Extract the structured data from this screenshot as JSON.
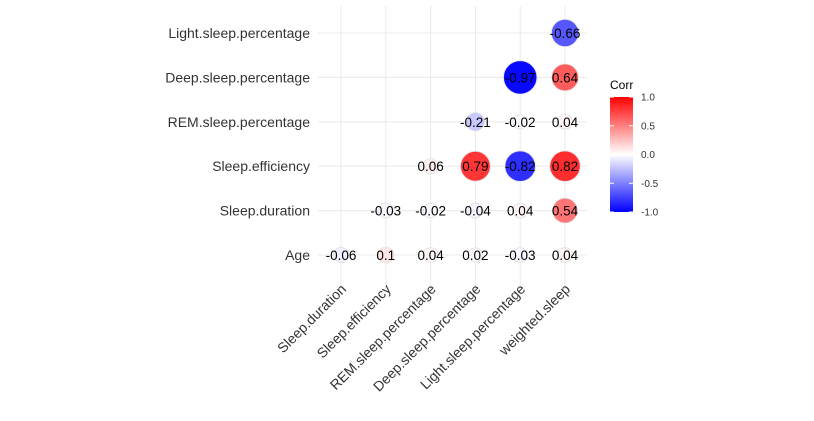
{
  "chart_data": {
    "type": "heatmap",
    "style": "correlation-circles",
    "x_categories": [
      "Sleep.duration",
      "Sleep.efficiency",
      "REM.sleep.percentage",
      "Deep.sleep.percentage",
      "Light.sleep.percentage",
      "weighted.sleep"
    ],
    "y_categories": [
      "Age",
      "Sleep.duration",
      "Sleep.efficiency",
      "REM.sleep.percentage",
      "Deep.sleep.percentage",
      "Light.sleep.percentage"
    ],
    "cells": [
      {
        "x": "Sleep.duration",
        "y": "Age",
        "value": -0.06,
        "label": "-0.06"
      },
      {
        "x": "Sleep.efficiency",
        "y": "Age",
        "value": 0.1,
        "label": "0.1"
      },
      {
        "x": "REM.sleep.percentage",
        "y": "Age",
        "value": 0.04,
        "label": "0.04"
      },
      {
        "x": "Deep.sleep.percentage",
        "y": "Age",
        "value": 0.02,
        "label": "0.02"
      },
      {
        "x": "Light.sleep.percentage",
        "y": "Age",
        "value": -0.03,
        "label": "-0.03"
      },
      {
        "x": "weighted.sleep",
        "y": "Age",
        "value": 0.04,
        "label": "0.04"
      },
      {
        "x": "Sleep.efficiency",
        "y": "Sleep.duration",
        "value": -0.03,
        "label": "-0.03"
      },
      {
        "x": "REM.sleep.percentage",
        "y": "Sleep.duration",
        "value": -0.02,
        "label": "-0.02"
      },
      {
        "x": "Deep.sleep.percentage",
        "y": "Sleep.duration",
        "value": -0.04,
        "label": "-0.04"
      },
      {
        "x": "Light.sleep.percentage",
        "y": "Sleep.duration",
        "value": 0.04,
        "label": "0.04"
      },
      {
        "x": "weighted.sleep",
        "y": "Sleep.duration",
        "value": 0.54,
        "label": "0.54"
      },
      {
        "x": "REM.sleep.percentage",
        "y": "Sleep.efficiency",
        "value": 0.06,
        "label": "0.06"
      },
      {
        "x": "Deep.sleep.percentage",
        "y": "Sleep.efficiency",
        "value": 0.79,
        "label": "0.79"
      },
      {
        "x": "Light.sleep.percentage",
        "y": "Sleep.efficiency",
        "value": -0.82,
        "label": "-0.82"
      },
      {
        "x": "weighted.sleep",
        "y": "Sleep.efficiency",
        "value": 0.82,
        "label": "0.82"
      },
      {
        "x": "Deep.sleep.percentage",
        "y": "REM.sleep.percentage",
        "value": -0.21,
        "label": "-0.21"
      },
      {
        "x": "Light.sleep.percentage",
        "y": "REM.sleep.percentage",
        "value": -0.02,
        "label": "-0.02"
      },
      {
        "x": "weighted.sleep",
        "y": "REM.sleep.percentage",
        "value": 0.04,
        "label": "0.04"
      },
      {
        "x": "Light.sleep.percentage",
        "y": "Deep.sleep.percentage",
        "value": -0.97,
        "label": "-0.97"
      },
      {
        "x": "weighted.sleep",
        "y": "Deep.sleep.percentage",
        "value": 0.64,
        "label": "0.64"
      },
      {
        "x": "weighted.sleep",
        "y": "Light.sleep.percentage",
        "value": -0.66,
        "label": "-0.66"
      }
    ],
    "legend": {
      "title": "Corr",
      "ticks": [
        {
          "value": 1.0,
          "label": "1.0"
        },
        {
          "value": 0.5,
          "label": "0.5"
        },
        {
          "value": 0.0,
          "label": "0.0"
        },
        {
          "value": -0.5,
          "label": "-0.5"
        },
        {
          "value": -1.0,
          "label": "-1.0"
        }
      ],
      "placement": "right"
    },
    "colors": {
      "low": "#0000ff",
      "mid": "#ffffff",
      "high": "#ff0000"
    },
    "grid": true
  }
}
